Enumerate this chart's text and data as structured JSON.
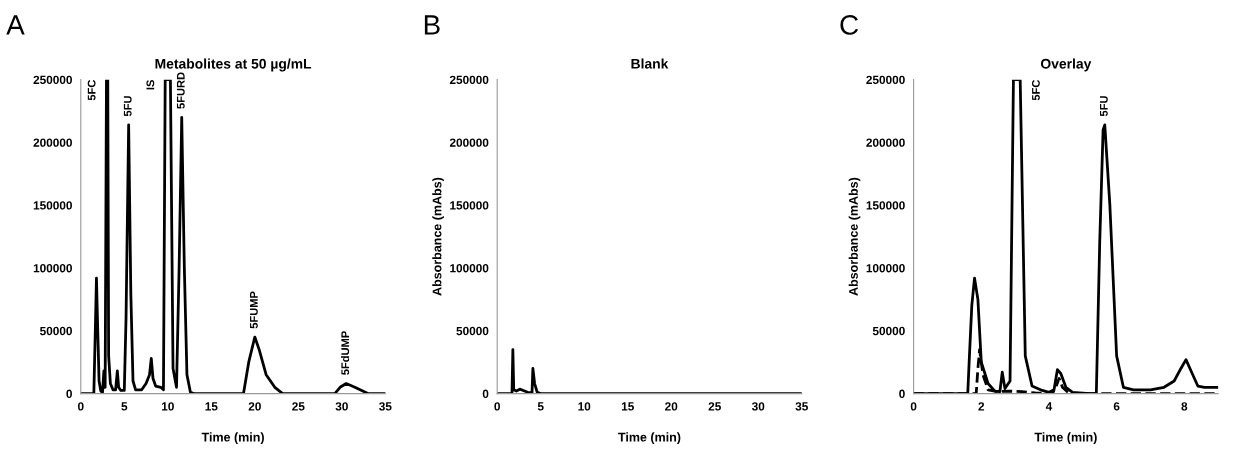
{
  "chart_data": [
    {
      "type": "line",
      "title": "Metabolites at 50 µg/mL",
      "xlabel": "Time (min)",
      "xlim": [
        0,
        35
      ],
      "xticks": [
        0,
        5,
        10,
        15,
        20,
        25,
        30,
        35
      ],
      "ylim": [
        0,
        250000
      ],
      "yticks": [
        0,
        50000,
        100000,
        150000,
        200000,
        250000
      ],
      "grid": false,
      "legend": false,
      "line_style": "solid",
      "marker": "none",
      "annotations": [
        "A",
        {
          "text": "5FC",
          "x": 2.95,
          "y": 250000
        },
        {
          "text": "5FU",
          "x": 5.5,
          "y": 214000
        },
        {
          "text": "IS",
          "x": 9.7,
          "y": 250000
        },
        {
          "text": "5FURD",
          "x": 11.6,
          "y": 220000
        },
        {
          "text": "5FUMP",
          "x": 20.0,
          "y": 45000
        },
        {
          "text": "5FdUMP",
          "x": 30.5,
          "y": 8000
        }
      ],
      "series": [
        {
          "color": "#000000",
          "x": [
            0,
            1.5,
            1.7,
            1.8,
            1.95,
            2.1,
            2.3,
            2.5,
            2.65,
            2.8,
            2.95,
            3.1,
            3.2,
            3.4,
            3.7,
            4.0,
            4.2,
            4.35,
            4.6,
            5.0,
            5.2,
            5.5,
            5.75,
            6.0,
            6.3,
            7.0,
            7.5,
            7.9,
            8.1,
            8.3,
            8.6,
            9.2,
            9.5,
            9.7,
            10.3,
            10.6,
            11.0,
            11.3,
            11.6,
            11.9,
            12.2,
            12.6,
            13,
            18.7,
            19.3,
            20.0,
            20.5,
            21.3,
            22.3,
            23.2,
            29.2,
            29.8,
            30.5,
            31.5,
            32.7,
            33,
            35
          ],
          "values": [
            0,
            0,
            60000,
            92000,
            50000,
            10000,
            2000,
            1000,
            18000,
            5000,
            250000,
            250000,
            30000,
            8000,
            3000,
            3000,
            18000,
            5000,
            2500,
            2500,
            60000,
            214000,
            80000,
            10000,
            3000,
            3000,
            8000,
            15000,
            28000,
            12000,
            6000,
            5000,
            3000,
            250000,
            250000,
            20000,
            5000,
            100000,
            220000,
            100000,
            15000,
            1000,
            0,
            0,
            25000,
            45000,
            35000,
            15000,
            5000,
            0,
            0,
            5000,
            8000,
            5000,
            1000,
            0,
            0
          ]
        }
      ]
    },
    {
      "type": "line",
      "title": "Blank",
      "xlabel": "Time (min)",
      "ylabel": "Absorbance (mAbs)",
      "xlim": [
        0,
        35
      ],
      "xticks": [
        0,
        5,
        10,
        15,
        20,
        25,
        30,
        35
      ],
      "ylim": [
        0,
        250000
      ],
      "yticks": [
        0,
        50000,
        100000,
        150000,
        200000,
        250000
      ],
      "grid": false,
      "legend": false,
      "line_style": "solid",
      "marker": "none",
      "annotations": [
        "B"
      ],
      "series": [
        {
          "color": "#000000",
          "x": [
            0,
            1.7,
            1.8,
            1.9,
            2.2,
            2.6,
            3.0,
            3.5,
            4.0,
            4.1,
            4.3,
            4.6,
            5.0,
            35
          ],
          "values": [
            0,
            0,
            35000,
            3000,
            2000,
            3500,
            2500,
            1000,
            500,
            20000,
            8000,
            1000,
            0,
            0
          ]
        }
      ]
    },
    {
      "type": "line",
      "title": "Overlay",
      "xlabel": "Time (min)",
      "ylabel": "Absorbance (mAbs)",
      "xlim": [
        0,
        9
      ],
      "xticks": [
        0,
        2,
        4,
        6,
        8
      ],
      "ylim": [
        0,
        250000
      ],
      "yticks": [
        0,
        50000,
        100000,
        150000,
        200000,
        250000
      ],
      "grid": false,
      "legend": false,
      "marker": "none",
      "annotations": [
        "C",
        {
          "text": "5FC",
          "x": 3.15,
          "y": 250000
        },
        {
          "text": "5FU",
          "x": 5.65,
          "y": 214000
        }
      ],
      "series": [
        {
          "color": "#000000",
          "line_style": "solid",
          "x": [
            0,
            1.6,
            1.65,
            1.72,
            1.8,
            1.9,
            2.0,
            2.2,
            2.4,
            2.55,
            2.62,
            2.7,
            2.85,
            2.95,
            3.15,
            3.3,
            3.5,
            3.8,
            4.0,
            4.15,
            4.25,
            4.35,
            4.5,
            4.7,
            5.2,
            5.4,
            5.5,
            5.6,
            5.65,
            5.8,
            6.0,
            6.2,
            6.5,
            7.0,
            7.4,
            7.7,
            7.9,
            8.05,
            8.2,
            8.4,
            8.6,
            9.0
          ],
          "values": [
            0,
            0,
            30000,
            70000,
            92000,
            75000,
            25000,
            8000,
            2000,
            1500,
            17000,
            4000,
            10000,
            250000,
            250000,
            30000,
            6000,
            2500,
            1000,
            3000,
            19000,
            16000,
            5000,
            1000,
            0,
            0,
            120000,
            210000,
            214000,
            150000,
            30000,
            5000,
            3000,
            3000,
            5000,
            10000,
            20000,
            27000,
            18000,
            6000,
            5000,
            5000
          ]
        },
        {
          "color": "#000000",
          "line_style": "dashed",
          "x": [
            0,
            1.85,
            1.9,
            1.95,
            2.05,
            2.2,
            2.5,
            2.8,
            3.2,
            3.6,
            4.1,
            4.2,
            4.3,
            4.4,
            4.6,
            9.0
          ],
          "values": [
            0,
            0,
            20000,
            35000,
            15000,
            3000,
            1500,
            2000,
            1500,
            500,
            0,
            5000,
            12000,
            5000,
            0,
            0
          ]
        }
      ]
    }
  ]
}
